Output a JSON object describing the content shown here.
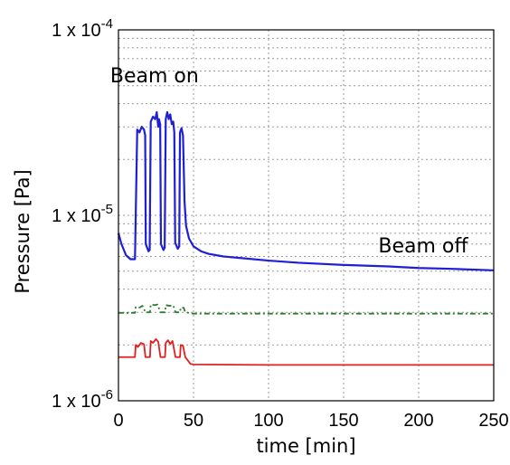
{
  "chart_data": {
    "type": "line",
    "title": "",
    "xlabel": "time [min]",
    "ylabel": "Pressure [Pa]",
    "xlim": [
      0,
      250
    ],
    "ylim": [
      1e-06,
      0.0001
    ],
    "yscale": "log",
    "grid": true,
    "x_ticks": [
      0,
      50,
      100,
      150,
      200,
      250
    ],
    "x_tick_labels": [
      "0",
      "50",
      "100",
      "150",
      "200",
      "250"
    ],
    "y_tick_labels": [
      {
        "value": 1e-06,
        "base": "1 x 10",
        "exp": "-6"
      },
      {
        "value": 1e-05,
        "base": "1 x 10",
        "exp": "-5"
      },
      {
        "value": 0.0001,
        "base": "1 x 10",
        "exp": "-4"
      }
    ],
    "annotations": [
      {
        "text": "Beam on",
        "x": 24,
        "y": 5.2e-05
      },
      {
        "text": "Beam off",
        "x": 203,
        "y": 6.3e-06
      }
    ],
    "series": [
      {
        "color": "#1f1fd6",
        "style": "solid",
        "points": [
          [
            0,
            8e-06
          ],
          [
            2,
            7e-06
          ],
          [
            5,
            6.1e-06
          ],
          [
            8,
            5.8e-06
          ],
          [
            11,
            5.8e-06
          ],
          [
            12.5,
            2.9e-05
          ],
          [
            14,
            2.8e-05
          ],
          [
            15.5,
            3e-05
          ],
          [
            17,
            2.9e-05
          ],
          [
            17.8,
            2.7e-05
          ],
          [
            18.2,
            7e-06
          ],
          [
            20,
            6.4e-06
          ],
          [
            20.8,
            6.5e-06
          ],
          [
            21.5,
            3.2e-05
          ],
          [
            23,
            3.4e-05
          ],
          [
            24.5,
            3.3e-05
          ],
          [
            25.5,
            3.6e-05
          ],
          [
            26.5,
            3e-05
          ],
          [
            27,
            3.3e-05
          ],
          [
            27.8,
            3.1e-05
          ],
          [
            28.3,
            7e-06
          ],
          [
            30,
            6.5e-06
          ],
          [
            30.8,
            6.7e-06
          ],
          [
            31.5,
            3.3e-05
          ],
          [
            32.5,
            3.6e-05
          ],
          [
            33.5,
            3.3e-05
          ],
          [
            34.5,
            3.5e-05
          ],
          [
            35.5,
            3.1e-05
          ],
          [
            36.5,
            3.2e-05
          ],
          [
            37.2,
            2.8e-05
          ],
          [
            37.8,
            7.1e-06
          ],
          [
            39.5,
            6.6e-06
          ],
          [
            40.5,
            6.8e-06
          ],
          [
            41,
            2.8e-05
          ],
          [
            42,
            2.95e-05
          ],
          [
            43,
            2.7e-05
          ],
          [
            44,
            1.2e-05
          ],
          [
            45,
            8.8e-06
          ],
          [
            47,
            7.5e-06
          ],
          [
            50,
            6.8e-06
          ],
          [
            55,
            6.4e-06
          ],
          [
            60,
            6.2e-06
          ],
          [
            70,
            6e-06
          ],
          [
            80,
            5.9e-06
          ],
          [
            100,
            5.7e-06
          ],
          [
            120,
            5.55e-06
          ],
          [
            150,
            5.4e-06
          ],
          [
            180,
            5.3e-06
          ],
          [
            200,
            5.2e-06
          ],
          [
            220,
            5.15e-06
          ],
          [
            250,
            5.05e-06
          ]
        ]
      },
      {
        "color": "#2e7d32",
        "style": "dashdot",
        "points": [
          [
            0,
            2.98e-06
          ],
          [
            11,
            2.98e-06
          ],
          [
            11.5,
            3.2e-06
          ],
          [
            14,
            3.18e-06
          ],
          [
            16,
            3.25e-06
          ],
          [
            18,
            3e-06
          ],
          [
            21,
            3e-06
          ],
          [
            21.5,
            3.3e-06
          ],
          [
            24,
            3.28e-06
          ],
          [
            26,
            3.3e-06
          ],
          [
            28,
            3e-06
          ],
          [
            31,
            3e-06
          ],
          [
            31.5,
            3.28e-06
          ],
          [
            34,
            3.25e-06
          ],
          [
            36.5,
            3.27e-06
          ],
          [
            38,
            3e-06
          ],
          [
            41,
            3e-06
          ],
          [
            41.5,
            3.18e-06
          ],
          [
            43.5,
            3.17e-06
          ],
          [
            44.5,
            3e-06
          ],
          [
            50,
            2.95e-06
          ],
          [
            100,
            2.95e-06
          ],
          [
            150,
            2.95e-06
          ],
          [
            200,
            2.95e-06
          ],
          [
            250,
            2.95e-06
          ]
        ]
      },
      {
        "color": "#e02020",
        "style": "solid",
        "points": [
          [
            0,
            1.72e-06
          ],
          [
            11,
            1.72e-06
          ],
          [
            11.5,
            2e-06
          ],
          [
            13,
            1.95e-06
          ],
          [
            15,
            2.05e-06
          ],
          [
            17,
            2.02e-06
          ],
          [
            18,
            1.72e-06
          ],
          [
            21,
            1.72e-06
          ],
          [
            21.5,
            2.1e-06
          ],
          [
            23,
            2.05e-06
          ],
          [
            25,
            2.15e-06
          ],
          [
            26.5,
            2.08e-06
          ],
          [
            28,
            1.72e-06
          ],
          [
            31,
            1.72e-06
          ],
          [
            31.5,
            2.05e-06
          ],
          [
            33,
            2.12e-06
          ],
          [
            34.5,
            2.02e-06
          ],
          [
            36,
            2.1e-06
          ],
          [
            38,
            1.72e-06
          ],
          [
            41,
            1.72e-06
          ],
          [
            41.5,
            2e-06
          ],
          [
            43,
            1.98e-06
          ],
          [
            44.5,
            1.72e-06
          ],
          [
            48,
            1.58e-06
          ],
          [
            50,
            1.57e-06
          ],
          [
            100,
            1.56e-06
          ],
          [
            150,
            1.56e-06
          ],
          [
            200,
            1.56e-06
          ],
          [
            250,
            1.56e-06
          ]
        ]
      }
    ]
  }
}
